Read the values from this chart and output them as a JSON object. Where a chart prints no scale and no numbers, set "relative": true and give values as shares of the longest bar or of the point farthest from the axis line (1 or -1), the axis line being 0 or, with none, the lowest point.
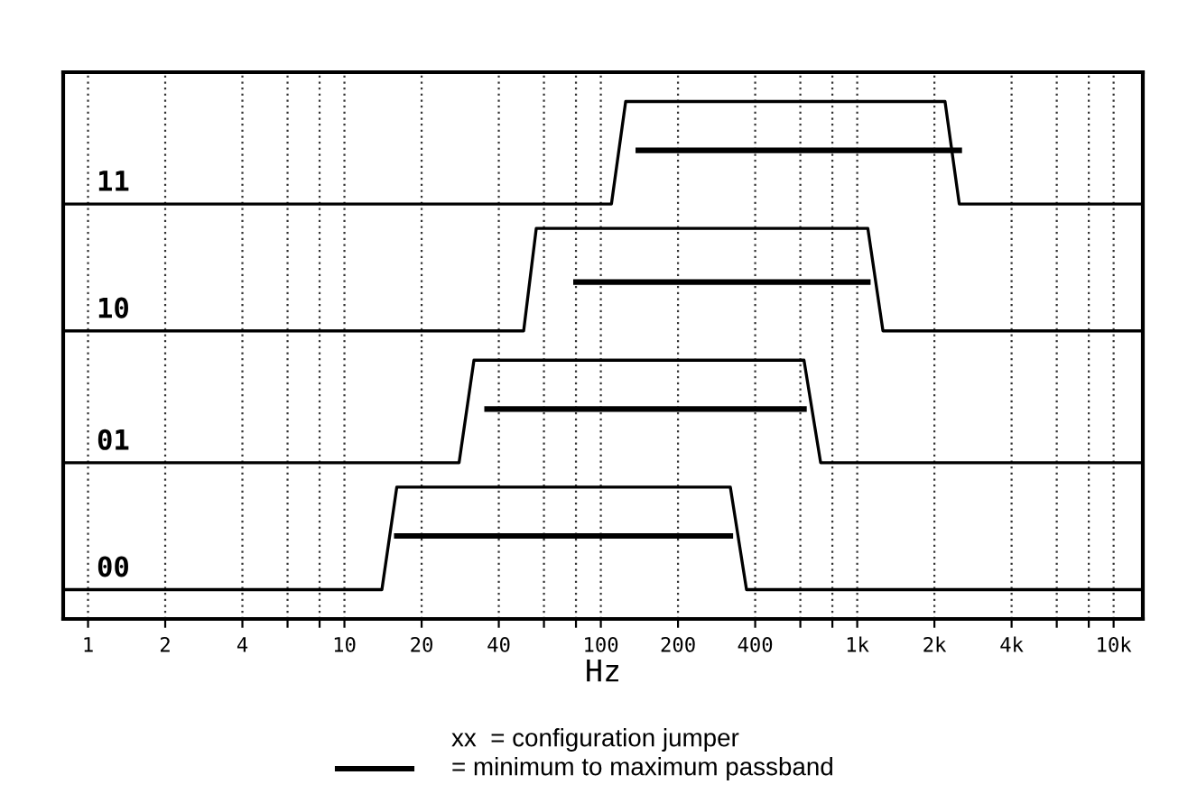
{
  "chart_data": {
    "type": "line",
    "relative": true,
    "log": "x",
    "grid": "x",
    "legend": false,
    "xlabel": "Hz",
    "xlim": [
      0.8,
      13000
    ],
    "xticks": [
      1,
      2,
      4,
      {
        "value": 6,
        "label": null
      },
      {
        "value": 8,
        "label": null
      },
      10,
      20,
      40,
      {
        "value": 60,
        "label": null
      },
      {
        "value": 80,
        "label": null
      },
      100,
      200,
      400,
      {
        "value": 600,
        "label": null
      },
      {
        "value": 800,
        "label": null
      },
      {
        "value": 1000,
        "label": "1k"
      },
      {
        "value": 2000,
        "label": "2k"
      },
      {
        "value": 4000,
        "label": "4k"
      },
      {
        "value": 6000,
        "label": null
      },
      {
        "value": 8000,
        "label": null
      },
      {
        "value": 10000,
        "label": "10k"
      }
    ],
    "series": [
      {
        "name": "00",
        "color": "#000000",
        "x": [
          0.8,
          14,
          16,
          320,
          370,
          13000
        ],
        "values": [
          0,
          0,
          0.21,
          0.21,
          0,
          0
        ]
      },
      {
        "color": "#000000",
        "x": [
          16,
          320
        ],
        "values": [
          0.11,
          0.11
        ]
      },
      {
        "name": "01",
        "color": "#000000",
        "x": [
          0.8,
          28,
          32,
          620,
          720,
          13000
        ],
        "values": [
          0.26,
          0.26,
          0.47,
          0.47,
          0.26,
          0.26
        ]
      },
      {
        "color": "#000000",
        "x": [
          36,
          620
        ],
        "values": [
          0.37,
          0.37
        ]
      },
      {
        "name": "10",
        "color": "#000000",
        "x": [
          0.8,
          50,
          56,
          1100,
          1260,
          13000
        ],
        "values": [
          0.53,
          0.53,
          0.74,
          0.74,
          0.53,
          0.53
        ]
      },
      {
        "color": "#000000",
        "x": [
          80,
          1100
        ],
        "values": [
          0.63,
          0.63
        ]
      },
      {
        "name": "11",
        "color": "#000000",
        "x": [
          0.8,
          110,
          125,
          2200,
          2500,
          13000
        ],
        "values": [
          0.79,
          0.79,
          1,
          1,
          0.79,
          0.79
        ]
      },
      {
        "color": "#000000",
        "x": [
          140,
          2500
        ],
        "values": [
          0.9,
          0.9
        ]
      }
    ],
    "annotations": [
      "xx  = configuration jumper",
      "= minimum to maximum passband"
    ]
  }
}
